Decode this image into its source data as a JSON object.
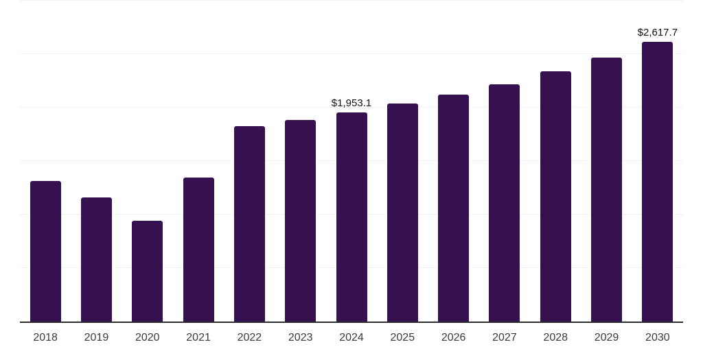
{
  "chart_data": {
    "type": "bar",
    "title": "",
    "xlabel": "",
    "ylabel": "",
    "categories": [
      "2018",
      "2019",
      "2020",
      "2021",
      "2022",
      "2023",
      "2024",
      "2025",
      "2026",
      "2027",
      "2028",
      "2029",
      "2030"
    ],
    "values": [
      1315,
      1160,
      940,
      1345,
      1825,
      1885,
      1953.1,
      2040,
      2120,
      2220,
      2340,
      2470,
      2617.7
    ],
    "data_labels": [
      null,
      null,
      null,
      null,
      null,
      null,
      "$1,953.1",
      null,
      null,
      null,
      null,
      null,
      "$2,617.7"
    ],
    "ylim": [
      0,
      3000
    ],
    "gridline_interval": 500,
    "grid": "horizontal-only",
    "y_axis_labels_visible": false,
    "legend": "none",
    "colors": {
      "bar": "#36114F",
      "gridline": "#f2f2f2",
      "axis_line": "#2e2e2e",
      "tick_label": "#3a3a3a",
      "value_label": "#111111",
      "background": "#ffffff"
    }
  }
}
